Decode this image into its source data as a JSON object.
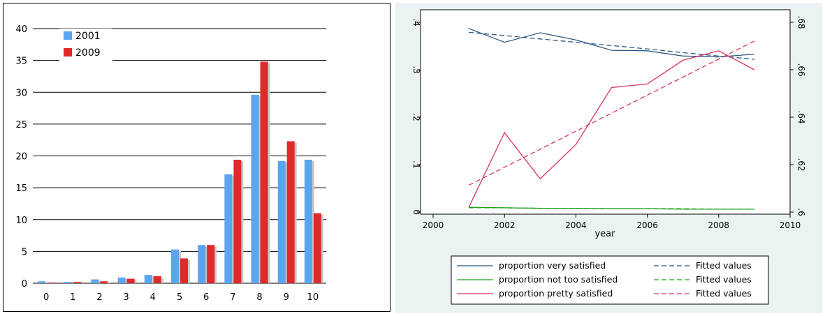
{
  "chart_data": [
    {
      "type": "bar",
      "categories": [
        "0",
        "1",
        "2",
        "3",
        "4",
        "5",
        "6",
        "7",
        "8",
        "9",
        "10"
      ],
      "series": [
        {
          "name": "2001",
          "color": "#5aa5f0",
          "values": [
            0.3,
            0.2,
            0.6,
            0.9,
            1.3,
            5.3,
            6.0,
            17.1,
            29.6,
            19.2,
            19.4
          ]
        },
        {
          "name": "2009",
          "color": "#e02a2a",
          "values": [
            0.1,
            0.2,
            0.3,
            0.7,
            1.1,
            3.9,
            6.0,
            19.4,
            34.8,
            22.3,
            11.0
          ]
        }
      ],
      "ylim": [
        0,
        40
      ],
      "yticks": [
        0,
        5,
        10,
        15,
        20,
        25,
        30,
        35,
        40
      ],
      "grid": true,
      "legend": "top-left"
    },
    {
      "type": "line",
      "xlabel": "year",
      "xlim": [
        2000,
        2010
      ],
      "xticks": [
        2000,
        2002,
        2004,
        2006,
        2008,
        2010
      ],
      "left_ylim": [
        0,
        0.4
      ],
      "left_yticks": [
        "0",
        ".1",
        ".2",
        ".3",
        ".4"
      ],
      "left_ytick_values": [
        0,
        0.1,
        0.2,
        0.3,
        0.4
      ],
      "right_ylim": [
        0.6,
        0.68
      ],
      "right_yticks": [
        ".6",
        ".62",
        ".64",
        ".66",
        ".68"
      ],
      "right_ytick_values": [
        0.6,
        0.62,
        0.64,
        0.66,
        0.68
      ],
      "x": [
        2001,
        2002,
        2003,
        2004,
        2005,
        2006,
        2007,
        2008,
        2009
      ],
      "series": [
        {
          "name": "proportion very satisfied",
          "axis": "left",
          "color": "#2b5a84",
          "dash": false,
          "values": [
            0.387,
            0.358,
            0.378,
            0.363,
            0.341,
            0.34,
            0.329,
            0.327,
            0.333
          ]
        },
        {
          "name": "Fitted values",
          "axis": "left",
          "color": "#2b5a84",
          "dash": true,
          "values": [
            0.379,
            0.372,
            0.365,
            0.358,
            0.351,
            0.344,
            0.336,
            0.329,
            0.322
          ]
        },
        {
          "name": "proportion not too satisfied",
          "axis": "left",
          "color": "#1fa01f",
          "dash": false,
          "values": [
            0.01,
            0.009,
            0.008,
            0.008,
            0.007,
            0.007,
            0.006,
            0.006,
            0.006
          ]
        },
        {
          "name": "Fitted values",
          "axis": "left",
          "color": "#1fa01f",
          "dash": true,
          "values": [
            0.009,
            0.009,
            0.008,
            0.008,
            0.007,
            0.007,
            0.007,
            0.006,
            0.006
          ]
        },
        {
          "name": "proportion pretty satisfied",
          "axis": "right",
          "color": "#d8345f",
          "dash": false,
          "values": [
            0.602,
            0.6335,
            0.614,
            0.6285,
            0.6525,
            0.654,
            0.664,
            0.668,
            0.66
          ]
        },
        {
          "name": "Fitted values",
          "axis": "right",
          "color": "#d8345f",
          "dash": true,
          "values": [
            0.6113,
            0.6189,
            0.6265,
            0.6341,
            0.6417,
            0.6493,
            0.6569,
            0.6645,
            0.6721
          ]
        }
      ],
      "legend": "bottom"
    }
  ]
}
